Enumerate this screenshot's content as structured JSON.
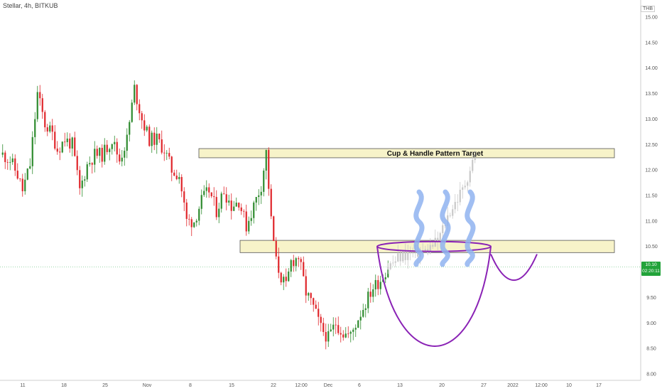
{
  "header": {
    "symbol": "Stellar",
    "interval": "4h",
    "exchange": "BITKUB",
    "title": "Stellar, 4h, BITKUB",
    "currency": "THB"
  },
  "price_tag": {
    "price": "10.10",
    "countdown": "02:20:11",
    "color": "#22a33a"
  },
  "colors": {
    "up": "#2e8b2e",
    "down": "#e0262b",
    "projection": "#c8c8c8",
    "zone_fill": "#f7f3c9",
    "zone_stroke": "#555555",
    "cup": "#8a22b5",
    "steam": "#8fb3f0"
  },
  "chart_data": {
    "type": "candlestick",
    "title": "Stellar, 4h, BITKUB",
    "ylim": [
      8.0,
      15.0
    ],
    "y_ticks": [
      "8.00",
      "8.50",
      "9.00",
      "9.50",
      "10.00",
      "10.50",
      "11.00",
      "11.50",
      "12.00",
      "12.50",
      "13.00",
      "13.50",
      "14.00",
      "14.50",
      "15.00"
    ],
    "x_ticks": [
      "11",
      "18",
      "25",
      "Nov",
      "8",
      "15",
      "22",
      "12:00",
      "Dec",
      "6",
      "13",
      "20",
      "27",
      "2022",
      "12:00",
      "10",
      "17"
    ],
    "price_path": [
      [
        0,
        12.3
      ],
      [
        3,
        12.2
      ],
      [
        6,
        11.9
      ],
      [
        8,
        11.6
      ],
      [
        11,
        12.1
      ],
      [
        14,
        13.5
      ],
      [
        17,
        12.9
      ],
      [
        20,
        12.7
      ],
      [
        22,
        12.4
      ],
      [
        25,
        12.6
      ],
      [
        28,
        12.5
      ],
      [
        31,
        11.6
      ],
      [
        34,
        12.1
      ],
      [
        37,
        12.3
      ],
      [
        40,
        12.3
      ],
      [
        44,
        12.6
      ],
      [
        47,
        12.2
      ],
      [
        50,
        12.6
      ],
      [
        53,
        13.6
      ],
      [
        56,
        13.0
      ],
      [
        59,
        12.6
      ],
      [
        62,
        12.6
      ],
      [
        65,
        12.4
      ],
      [
        68,
        12.0
      ],
      [
        71,
        11.9
      ],
      [
        74,
        11.0
      ],
      [
        77,
        11.0
      ],
      [
        80,
        11.4
      ],
      [
        83,
        11.6
      ],
      [
        86,
        11.2
      ],
      [
        89,
        11.6
      ],
      [
        92,
        11.3
      ],
      [
        95,
        11.4
      ],
      [
        98,
        10.9
      ],
      [
        101,
        11.3
      ],
      [
        104,
        11.7
      ],
      [
        106,
        12.35
      ],
      [
        108,
        11.0
      ],
      [
        110,
        10.2
      ],
      [
        112,
        9.9
      ],
      [
        114,
        9.7
      ],
      [
        116,
        10.2
      ],
      [
        119,
        10.3
      ],
      [
        122,
        9.6
      ],
      [
        125,
        9.3
      ],
      [
        128,
        8.9
      ],
      [
        131,
        8.7
      ],
      [
        134,
        9.0
      ],
      [
        137,
        8.8
      ],
      [
        140,
        8.75
      ],
      [
        143,
        9.1
      ],
      [
        146,
        9.4
      ],
      [
        149,
        9.7
      ],
      [
        152,
        9.85
      ],
      [
        155,
        10.1
      ]
    ],
    "projection_path": [
      [
        155,
        10.1
      ],
      [
        160,
        10.3
      ],
      [
        165,
        10.4
      ],
      [
        170,
        10.4
      ],
      [
        175,
        10.6
      ],
      [
        180,
        11.2
      ],
      [
        185,
        11.6
      ],
      [
        190,
        12.3
      ]
    ],
    "annotations": [
      {
        "type": "zone",
        "label": "Cup & Handle Pattern Target",
        "y_range": [
          12.24,
          12.42
        ]
      },
      {
        "type": "zone",
        "label": "",
        "y_range": [
          10.38,
          10.62
        ]
      },
      {
        "type": "cup",
        "rim_level": 10.5,
        "bottom": 8.52
      },
      {
        "type": "handle",
        "level": 10.35,
        "bottom": 9.78
      }
    ],
    "grid": false,
    "legend": "none"
  }
}
